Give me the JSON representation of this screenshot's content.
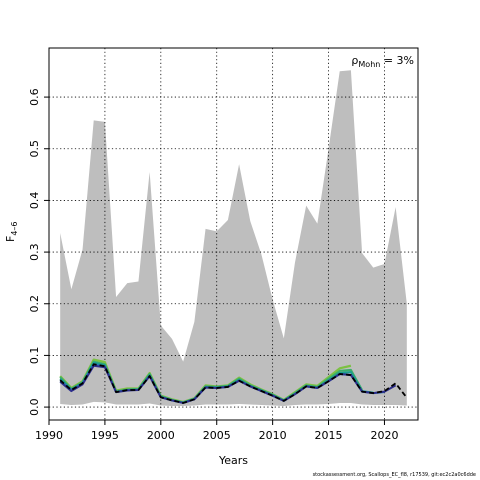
{
  "chart_data": {
    "type": "line",
    "ylabel": "F",
    "ylabel_subscript": "4–6",
    "xlabel": "Years",
    "xlim": [
      1990,
      2023
    ],
    "ylim": [
      -0.025,
      0.695
    ],
    "x_ticks": [
      1990,
      1995,
      2000,
      2005,
      2010,
      2015,
      2020
    ],
    "y_ticks": [
      0.0,
      0.1,
      0.2,
      0.3,
      0.4,
      0.5,
      0.6
    ],
    "x_tick_labels": [
      "1990",
      "1995",
      "2000",
      "2005",
      "2010",
      "2015",
      "2020"
    ],
    "y_tick_labels": [
      "0.0",
      "0.1",
      "0.2",
      "0.3",
      "0.4",
      "0.5",
      "0.6"
    ],
    "grid": true,
    "annotation": {
      "symbol": "ρ",
      "subscript": "Mohn",
      "text": " = 3%"
    },
    "band": {
      "color": "#bebebe",
      "x": [
        1991,
        1992,
        1993,
        1994,
        1995,
        1996,
        1997,
        1998,
        1999,
        2000,
        2001,
        2002,
        2003,
        2004,
        2005,
        2006,
        2007,
        2008,
        2009,
        2010,
        2011,
        2012,
        2013,
        2014,
        2015,
        2016,
        2017,
        2018,
        2019,
        2020,
        2021,
        2022
      ],
      "upper": [
        0.337,
        0.228,
        0.305,
        0.555,
        0.552,
        0.213,
        0.24,
        0.243,
        0.455,
        0.158,
        0.132,
        0.088,
        0.165,
        0.345,
        0.34,
        0.362,
        0.47,
        0.36,
        0.295,
        0.208,
        0.133,
        0.28,
        0.39,
        0.355,
        0.5,
        0.65,
        0.652,
        0.298,
        0.27,
        0.277,
        0.387,
        0.2
      ],
      "lower": [
        0.006,
        0.004,
        0.005,
        0.01,
        0.009,
        0.005,
        0.005,
        0.005,
        0.007,
        0.003,
        0.002,
        0.002,
        0.003,
        0.005,
        0.005,
        0.005,
        0.006,
        0.005,
        0.004,
        0.003,
        0.002,
        0.004,
        0.005,
        0.005,
        0.006,
        0.008,
        0.008,
        0.005,
        0.004,
        0.004,
        0.004,
        0.003
      ]
    },
    "x": [
      1991,
      1992,
      1993,
      1994,
      1995,
      1996,
      1997,
      1998,
      1999,
      2000,
      2001,
      2002,
      2003,
      2004,
      2005,
      2006,
      2007,
      2008,
      2009,
      2010,
      2011,
      2012,
      2013,
      2014,
      2015,
      2016,
      2017,
      2018,
      2019,
      2020,
      2021,
      2022
    ],
    "series": [
      {
        "color": "#7cc142",
        "width": 2.2,
        "values": [
          0.06,
          0.037,
          0.05,
          0.092,
          0.087,
          0.032,
          0.036,
          0.036,
          0.066,
          0.022,
          0.015,
          0.01,
          0.017,
          0.042,
          0.04,
          0.042,
          0.057,
          0.044,
          0.034,
          0.025,
          0.014,
          0.029,
          0.044,
          0.041,
          0.058,
          0.075,
          0.08,
          null,
          null,
          null,
          null,
          null
        ]
      },
      {
        "color": "#3cae6a",
        "width": 2.0,
        "values": [
          0.058,
          0.035,
          0.048,
          0.088,
          0.083,
          0.03,
          0.034,
          0.035,
          0.064,
          0.021,
          0.014,
          0.009,
          0.016,
          0.04,
          0.039,
          0.041,
          0.055,
          0.042,
          0.033,
          0.024,
          0.013,
          0.027,
          0.042,
          0.039,
          0.055,
          0.07,
          0.072,
          0.033,
          null,
          null,
          null,
          null
        ]
      },
      {
        "color": "#1c9e8d",
        "width": 2.0,
        "values": [
          0.055,
          0.034,
          0.047,
          0.086,
          0.081,
          0.03,
          0.033,
          0.034,
          0.062,
          0.02,
          0.013,
          0.009,
          0.016,
          0.039,
          0.038,
          0.04,
          0.053,
          0.041,
          0.032,
          0.023,
          0.013,
          0.026,
          0.041,
          0.038,
          0.052,
          0.066,
          0.068,
          0.031,
          0.028,
          null,
          null,
          null
        ]
      },
      {
        "color": "#2a77b4",
        "width": 2.0,
        "values": [
          0.052,
          0.033,
          0.046,
          0.083,
          0.079,
          0.029,
          0.033,
          0.033,
          0.06,
          0.019,
          0.013,
          0.008,
          0.015,
          0.038,
          0.037,
          0.039,
          0.051,
          0.04,
          0.031,
          0.022,
          0.012,
          0.025,
          0.04,
          0.037,
          0.05,
          0.064,
          0.062,
          0.03,
          0.027,
          0.029,
          null,
          null
        ]
      },
      {
        "color": "#2c2d8c",
        "width": 2.0,
        "values": [
          0.049,
          0.031,
          0.044,
          0.08,
          0.077,
          0.029,
          0.032,
          0.033,
          0.06,
          0.019,
          0.013,
          0.008,
          0.015,
          0.038,
          0.037,
          0.039,
          0.051,
          0.04,
          0.031,
          0.022,
          0.012,
          0.025,
          0.04,
          0.037,
          0.05,
          0.064,
          0.062,
          0.03,
          0.027,
          0.03,
          0.042,
          null
        ]
      },
      {
        "color": "#000000",
        "width": 1.8,
        "values": [
          0.052,
          0.033,
          0.046,
          0.083,
          0.079,
          0.029,
          0.033,
          0.033,
          0.06,
          0.019,
          0.013,
          0.008,
          0.015,
          0.038,
          0.037,
          0.039,
          0.051,
          0.04,
          0.031,
          0.022,
          0.012,
          0.025,
          0.04,
          0.037,
          0.05,
          0.064,
          0.062,
          0.03,
          0.027,
          0.031,
          0.046,
          0.018
        ],
        "dash": "5,3"
      }
    ]
  },
  "footer": "stockassessment.org, Scallops_EC_fl8, r17539, git:ec2c2a0c6dde"
}
